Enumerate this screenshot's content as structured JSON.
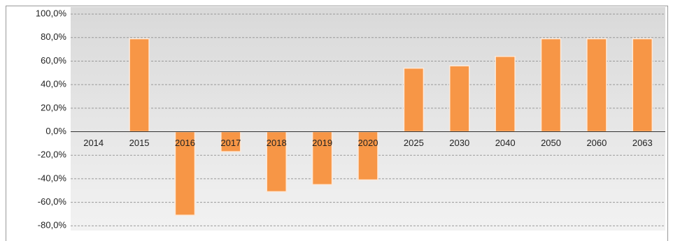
{
  "chart_data": {
    "type": "bar",
    "categories": [
      "2014",
      "2015",
      "2016",
      "2017",
      "2018",
      "2019",
      "2020",
      "2025",
      "2030",
      "2040",
      "2050",
      "2060",
      "2063"
    ],
    "values": [
      0,
      79,
      -71,
      -17,
      -51,
      -45,
      -41,
      54,
      56,
      64,
      79,
      79,
      79
    ],
    "color": "#f79646",
    "ylim": [
      -84,
      106
    ],
    "yticks": [
      {
        "value": -80,
        "label": "-80,0%"
      },
      {
        "value": -60,
        "label": "-60,0%"
      },
      {
        "value": -40,
        "label": "-40,0%"
      },
      {
        "value": -20,
        "label": "-20,0%"
      },
      {
        "value": 0,
        "label": "0,0%"
      },
      {
        "value": 20,
        "label": "20,0%"
      },
      {
        "value": 40,
        "label": "40,0%"
      },
      {
        "value": 60,
        "label": "60,0%"
      },
      {
        "value": 80,
        "label": "80,0%"
      },
      {
        "value": 100,
        "label": "100,0%"
      }
    ],
    "grid": true
  }
}
